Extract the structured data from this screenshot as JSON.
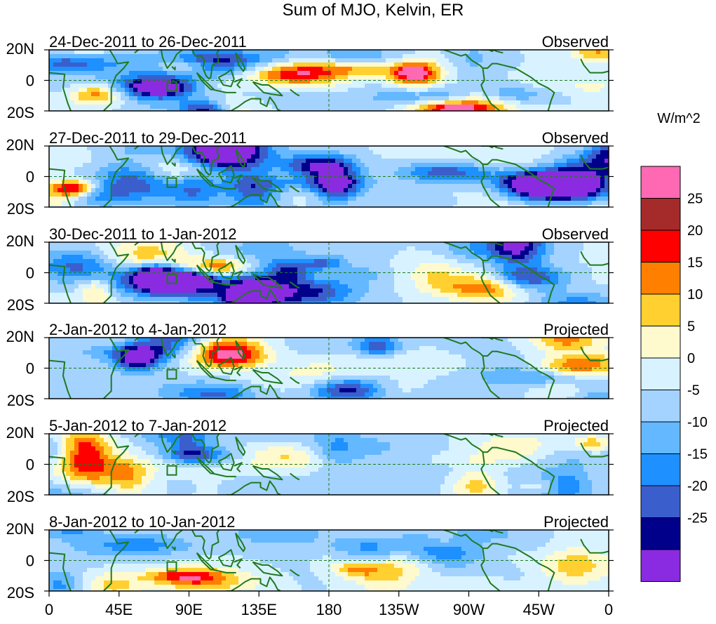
{
  "chart_data": {
    "type": "heatmap",
    "title": "Sum of MJO, Kelvin, ER",
    "units": "W/m^2",
    "colorbar": {
      "colors": [
        "#8a2be2",
        "#00008b",
        "#3a5fcd",
        "#1e90ff",
        "#63b8ff",
        "#a4d3ff",
        "#d8f3ff",
        "#fffacd",
        "#ffd02f",
        "#ff7f00",
        "#ff0000",
        "#a52a2a",
        "#ff69b4"
      ],
      "tick_labels": [
        "-25",
        "-20",
        "-15",
        "-10",
        "-5",
        "0",
        "5",
        "10",
        "15",
        "20",
        "25"
      ]
    },
    "lat_ticks": [
      "20N",
      "0",
      "20S"
    ],
    "lon_ticks": [
      "0",
      "45E",
      "90E",
      "135E",
      "180",
      "135W",
      "90W",
      "45W",
      "0"
    ],
    "panels": [
      {
        "date": "24-Dec-2011 to 26-Dec-2011",
        "status": "Observed",
        "seed": 11,
        "amp": 1.0
      },
      {
        "date": "27-Dec-2011 to 29-Dec-2011",
        "status": "Observed",
        "seed": 23,
        "amp": 1.0
      },
      {
        "date": "30-Dec-2011 to 1-Jan-2012",
        "status": "Observed",
        "seed": 37,
        "amp": 1.0
      },
      {
        "date": "2-Jan-2012 to 4-Jan-2012",
        "status": "Projected",
        "seed": 51,
        "amp": 0.8
      },
      {
        "date": "5-Jan-2012 to 7-Jan-2012",
        "status": "Projected",
        "seed": 67,
        "amp": 0.6
      },
      {
        "date": "8-Jan-2012 to 10-Jan-2012",
        "status": "Projected",
        "seed": 83,
        "amp": 0.55
      }
    ]
  }
}
